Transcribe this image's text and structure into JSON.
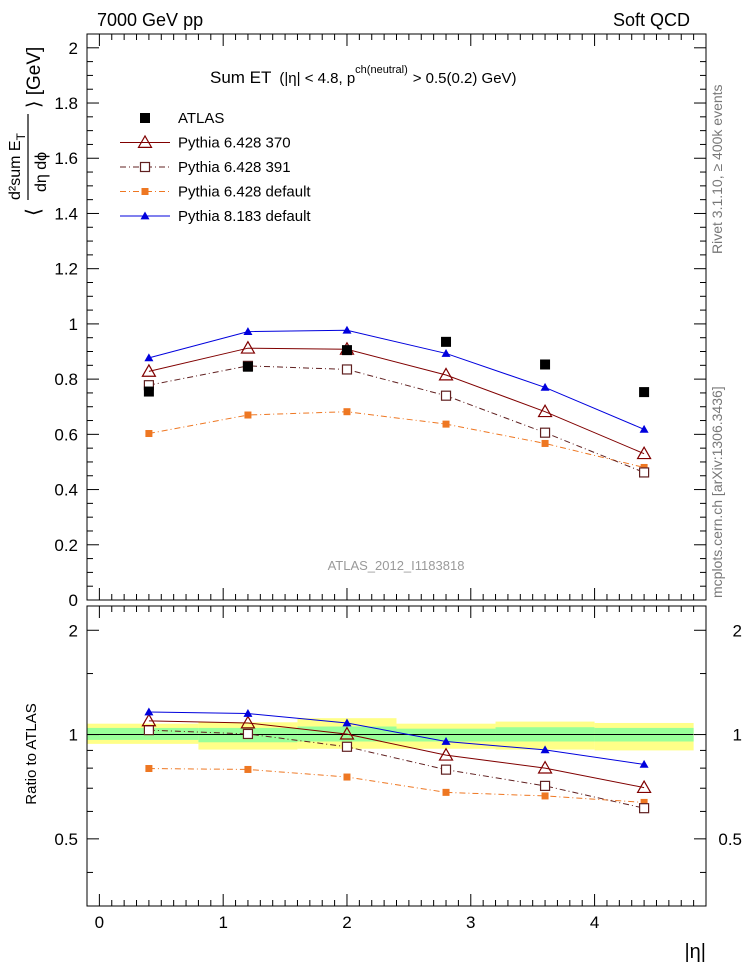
{
  "header": {
    "left": "7000 GeV pp",
    "right": "Soft QCD"
  },
  "side_text": {
    "rivet": "Rivet 3.1.10, ≥ 400k events",
    "mcplots": "mcplots.cern.ch [arXiv:1306.3436]"
  },
  "title": {
    "main": "Sum ET",
    "cut_prefix": "(|η| < 4.8, p",
    "cut_sup": "ch(neutral)",
    "cut_suffix": "> 0.5(0.2) GeV)"
  },
  "ylabel": {
    "open": "⟨",
    "num": "d²sum E",
    "num_sub": "T",
    "den": "dη dϕ",
    "close": "⟩ [GeV]"
  },
  "watermark": "ATLAS_2012_I1183818",
  "ratio_ylabel": "Ratio to ATLAS",
  "xlabel": "|η|",
  "colors": {
    "atlas": "#000000",
    "p370": "#800000",
    "p391": "#602020",
    "pdef": "#ee7722",
    "p8": "#0000dd",
    "band_yellow": "#ffff88",
    "band_green": "#99ff99"
  },
  "chart_data": [
    {
      "type": "line",
      "panel": "main",
      "xlim": [
        -0.1,
        4.9
      ],
      "ylim": [
        0,
        2.05
      ],
      "xticks": [
        0,
        1,
        2,
        3,
        4
      ],
      "yticks": [
        0,
        0.2,
        0.4,
        0.6,
        0.8,
        1,
        1.2,
        1.4,
        1.6,
        1.8,
        2
      ],
      "ytick_labels": [
        "0",
        "0.2",
        "0.4",
        "0.6",
        "0.8",
        "1",
        "1.2",
        "1.4",
        "1.6",
        "1.8",
        "2"
      ],
      "x": [
        0.4,
        1.2,
        2.0,
        2.8,
        3.6,
        4.4
      ],
      "series": [
        {
          "key": "atlas",
          "name": "ATLAS",
          "marker": "square-filled",
          "line": "none",
          "values": [
            0.755,
            0.845,
            0.905,
            0.935,
            0.853,
            0.753
          ]
        },
        {
          "key": "p370",
          "name": "Pythia 6.428 370",
          "marker": "triangle-open",
          "line": "solid",
          "values": [
            0.828,
            0.912,
            0.908,
            0.815,
            0.682,
            0.53
          ]
        },
        {
          "key": "p391",
          "name": "Pythia 6.428 391",
          "marker": "square-open",
          "line": "dashdot",
          "values": [
            0.778,
            0.848,
            0.835,
            0.74,
            0.606,
            0.462
          ]
        },
        {
          "key": "pdef",
          "name": "Pythia 6.428 default",
          "marker": "square-filled-small",
          "line": "dashdot",
          "values": [
            0.603,
            0.67,
            0.682,
            0.637,
            0.567,
            0.48
          ]
        },
        {
          "key": "p8",
          "name": "Pythia 8.183 default",
          "marker": "triangle-filled",
          "line": "solid",
          "values": [
            0.877,
            0.972,
            0.977,
            0.893,
            0.77,
            0.618
          ]
        }
      ]
    },
    {
      "type": "line",
      "panel": "ratio",
      "xlim": [
        -0.1,
        4.9
      ],
      "ylim": [
        0.32,
        2.35
      ],
      "xticks": [
        0,
        1,
        2,
        3,
        4
      ],
      "xtick_labels": [
        "0",
        "1",
        "2",
        "3",
        "4"
      ],
      "yticks": [
        0.5,
        1,
        2
      ],
      "ytick_labels": [
        "0.5",
        "1",
        "2"
      ],
      "x": [
        0.4,
        1.2,
        2.0,
        2.8,
        3.6,
        4.4
      ],
      "bands": {
        "bins": [
          [
            -0.1,
            0.8
          ],
          [
            0.8,
            1.6
          ],
          [
            1.6,
            2.4
          ],
          [
            2.4,
            3.2
          ],
          [
            3.2,
            4.0
          ],
          [
            4.0,
            4.8
          ]
        ],
        "yellow": [
          [
            0.94,
            1.075
          ],
          [
            0.905,
            1.085
          ],
          [
            0.91,
            1.115
          ],
          [
            0.91,
            1.075
          ],
          [
            0.905,
            1.09
          ],
          [
            0.9,
            1.08
          ]
        ],
        "green": [
          [
            0.965,
            1.045
          ],
          [
            0.95,
            1.045
          ],
          [
            0.955,
            1.055
          ],
          [
            0.955,
            1.04
          ],
          [
            0.955,
            1.05
          ],
          [
            0.955,
            1.045
          ]
        ]
      },
      "series": [
        {
          "key": "p370",
          "values": [
            1.095,
            1.08,
            1.003,
            0.872,
            0.8,
            0.703
          ]
        },
        {
          "key": "p391",
          "values": [
            1.03,
            1.004,
            0.922,
            0.792,
            0.711,
            0.613
          ]
        },
        {
          "key": "pdef",
          "values": [
            0.798,
            0.793,
            0.754,
            0.681,
            0.665,
            0.637
          ]
        },
        {
          "key": "p8",
          "values": [
            1.162,
            1.15,
            1.08,
            0.955,
            0.903,
            0.82
          ]
        }
      ]
    }
  ]
}
